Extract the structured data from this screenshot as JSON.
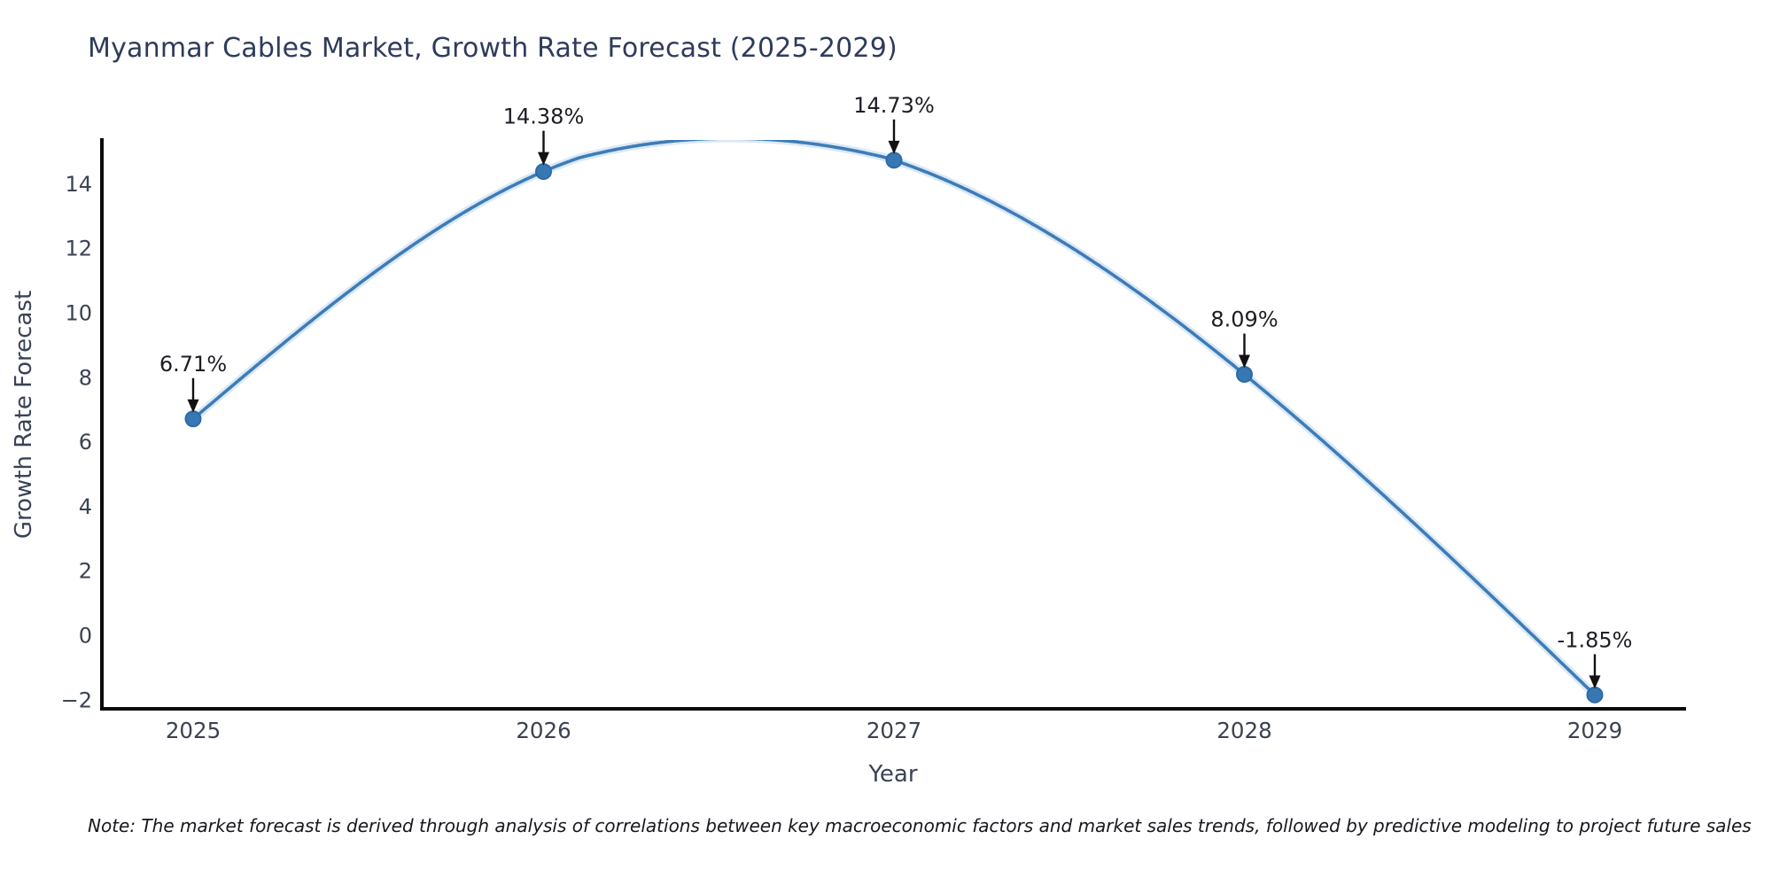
{
  "note": "Note: The market forecast is derived through analysis of correlations between key macroeconomic factors and market sales trends, followed by predictive modeling to project future sales",
  "chart_data": {
    "type": "line",
    "title": "Myanmar Cables Market, Growth Rate Forecast (2025-2029)",
    "xlabel": "Year",
    "ylabel": "Growth Rate Forecast",
    "x": [
      2025,
      2026,
      2027,
      2028,
      2029
    ],
    "values": [
      6.71,
      14.38,
      14.73,
      8.09,
      -1.85
    ],
    "point_labels": [
      "6.71%",
      "14.38%",
      "14.73%",
      "8.09%",
      "-1.85%"
    ],
    "xticks": [
      "2025",
      "2026",
      "2027",
      "2028",
      "2029"
    ],
    "yticks": [
      -2,
      0,
      2,
      4,
      6,
      8,
      10,
      12,
      14
    ],
    "xlim": [
      2024.74,
      2029.25
    ],
    "ylim": [
      -2.28,
      15.36
    ],
    "line_shape": "spline",
    "grid": false,
    "legend": "none",
    "marker": "circle",
    "annotation_arrows": true,
    "colors": {
      "line": "#3d7cb8",
      "line_halo": "#c7ddef",
      "marker_fill": "#3777b4",
      "marker_edge": "#2e6ba6",
      "spine": "#0a0a0a",
      "tick_text": "#3b4252",
      "title_text": "#2f3b5c",
      "annotation_text": "#1c1e24",
      "background": "#ffffff"
    }
  }
}
